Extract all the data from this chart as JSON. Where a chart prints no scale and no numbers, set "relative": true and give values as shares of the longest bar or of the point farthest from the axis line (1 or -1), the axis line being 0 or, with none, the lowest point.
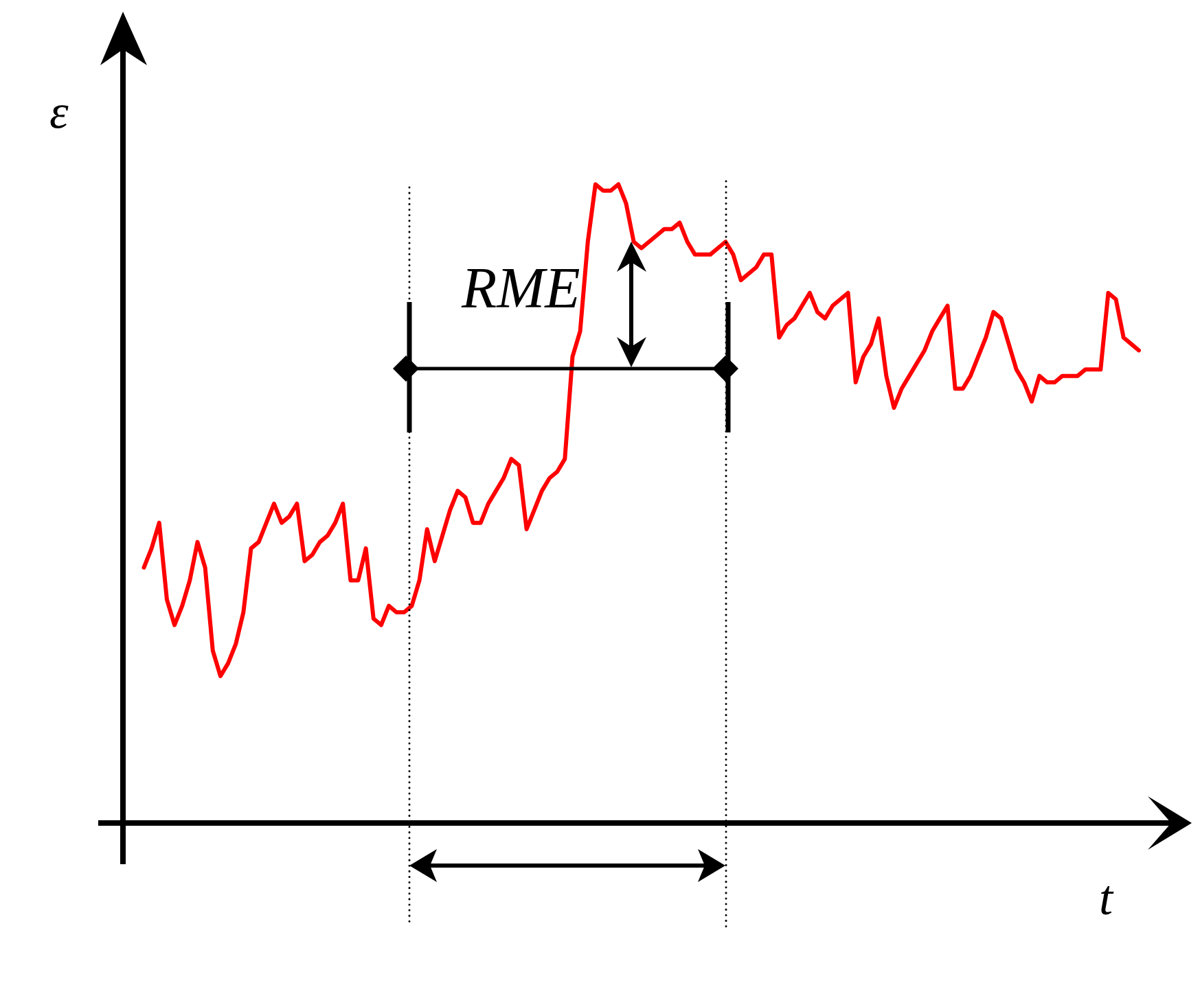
{
  "chart_data": {
    "type": "line",
    "xlabel": "t",
    "ylabel": "ε",
    "relative": true,
    "color": "#ff0000",
    "annotations": [
      "RME"
    ],
    "categories": [
      null,
      null,
      null,
      null,
      null,
      null,
      null,
      null,
      null,
      null,
      null,
      null,
      null,
      null,
      null,
      null,
      null,
      null,
      null,
      null,
      null,
      null,
      null,
      null,
      null,
      null,
      null,
      null,
      null,
      null,
      null,
      null,
      null,
      null,
      null,
      null,
      null,
      null,
      null,
      null,
      null,
      null,
      null,
      null,
      null,
      null,
      null,
      null,
      null,
      null,
      null,
      null,
      null,
      null,
      null,
      null,
      null,
      null,
      null,
      null,
      null,
      null,
      null,
      null,
      null,
      null,
      null,
      null,
      null,
      null,
      null,
      null,
      null,
      null,
      null,
      null,
      null,
      null,
      null,
      null,
      null,
      null,
      null,
      null,
      null,
      null,
      null,
      null,
      null,
      null,
      null,
      null,
      null,
      null,
      null,
      null,
      null,
      null,
      null,
      null,
      null,
      null,
      null,
      null,
      null,
      null,
      null,
      null,
      null,
      null,
      null,
      null,
      null,
      null,
      null,
      null,
      null,
      null,
      null,
      null,
      null,
      null,
      null,
      null,
      null,
      null,
      null,
      null,
      null,
      null,
      null
    ],
    "values": [
      0.4,
      0.43,
      0.47,
      0.35,
      0.31,
      0.34,
      0.38,
      0.44,
      0.4,
      0.27,
      0.23,
      0.25,
      0.28,
      0.33,
      0.43,
      0.44,
      0.47,
      0.5,
      0.47,
      0.48,
      0.5,
      0.41,
      0.42,
      0.44,
      0.45,
      0.47,
      0.5,
      0.38,
      0.38,
      0.43,
      0.32,
      0.31,
      0.34,
      0.33,
      0.33,
      0.34,
      0.38,
      0.46,
      0.41,
      0.45,
      0.49,
      0.52,
      0.51,
      0.47,
      0.47,
      0.5,
      0.52,
      0.54,
      0.57,
      0.56,
      0.46,
      0.49,
      0.52,
      0.54,
      0.55,
      0.57,
      0.73,
      0.77,
      0.91,
      1,
      0.99,
      0.99,
      1,
      0.97,
      0.91,
      0.9,
      0.91,
      0.92,
      0.93,
      0.93,
      0.94,
      0.91,
      0.89,
      0.89,
      0.89,
      0.9,
      0.91,
      0.89,
      0.85,
      0.86,
      0.87,
      0.89,
      0.89,
      0.76,
      0.78,
      0.79,
      0.81,
      0.83,
      0.8,
      0.79,
      0.81,
      0.82,
      0.83,
      0.69,
      0.73,
      0.75,
      0.79,
      0.7,
      0.65,
      0.68,
      0.7,
      0.72,
      0.74,
      0.77,
      0.79,
      0.81,
      0.68,
      0.68,
      0.7,
      0.73,
      0.76,
      0.8,
      0.79,
      0.75,
      0.71,
      0.69,
      0.66,
      0.7,
      0.69,
      0.69,
      0.7,
      0.7,
      0.7,
      0.71,
      0.71,
      0.71,
      0.83,
      0.82,
      0.76,
      0.75,
      0.74
    ]
  }
}
